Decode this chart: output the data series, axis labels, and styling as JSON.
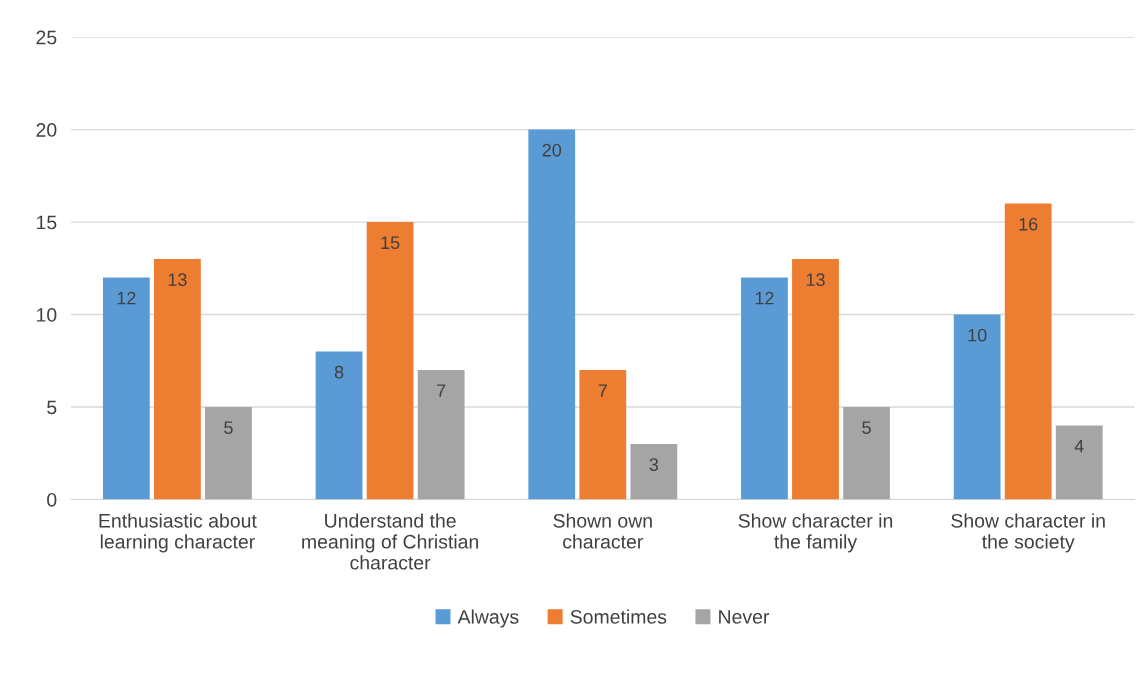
{
  "chart_data": {
    "type": "bar",
    "categories": [
      "Enthusiastic about\nlearning character",
      "Understand the\nmeaning of Christian\ncharacter",
      "Shown own\ncharacter",
      "Show character in\nthe family",
      "Show character in\nthe society"
    ],
    "series": [
      {
        "name": "Always",
        "color": "#5b9bd5",
        "values": [
          12,
          8,
          20,
          12,
          10
        ]
      },
      {
        "name": "Sometimes",
        "color": "#ed7d31",
        "values": [
          13,
          15,
          7,
          13,
          16
        ]
      },
      {
        "name": "Never",
        "color": "#a5a5a5",
        "values": [
          5,
          7,
          3,
          5,
          4
        ]
      }
    ],
    "ylim": [
      0,
      25
    ],
    "yticks": [
      0,
      5,
      10,
      15,
      20,
      25
    ],
    "grid": "y",
    "legend": "bottom",
    "data_labels": true
  }
}
